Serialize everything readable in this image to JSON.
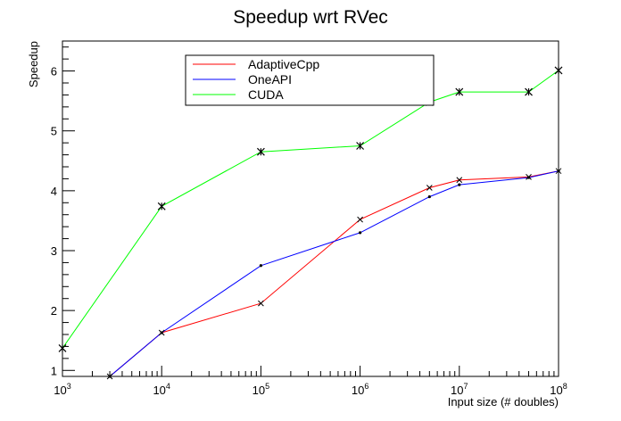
{
  "chart_data": {
    "type": "line",
    "title": "Speedup wrt RVec",
    "xlabel": "Input size (# doubles)",
    "ylabel": "Speedup",
    "x_scale": "log",
    "xlim": [
      1000,
      100000000
    ],
    "ylim": [
      0.9,
      6.5
    ],
    "x_ticks": [
      {
        "value": 1000,
        "base": "10",
        "exp": "3"
      },
      {
        "value": 10000,
        "base": "10",
        "exp": "4"
      },
      {
        "value": 100000,
        "base": "10",
        "exp": "5"
      },
      {
        "value": 1000000,
        "base": "10",
        "exp": "6"
      },
      {
        "value": 10000000,
        "base": "10",
        "exp": "7"
      },
      {
        "value": 100000000,
        "base": "10",
        "exp": "8"
      }
    ],
    "y_ticks": [
      1,
      2,
      3,
      4,
      5,
      6
    ],
    "legend_position": "top-center",
    "x": [
      1000,
      10000,
      100000,
      1000000,
      5000000,
      10000000,
      50000000,
      100000000
    ],
    "series": [
      {
        "name": "AdaptiveCpp",
        "color": "#ff0000",
        "marker": "x",
        "x": [
          3000,
          10000,
          100000,
          1000000,
          5000000,
          10000000,
          50000000,
          100000000
        ],
        "values": [
          0.9,
          1.63,
          2.12,
          3.52,
          4.05,
          4.18,
          4.23,
          4.33
        ]
      },
      {
        "name": "OneAPI",
        "color": "#0000ff",
        "marker": "dot",
        "x": [
          3000,
          10000,
          100000,
          1000000,
          5000000,
          10000000,
          50000000,
          100000000
        ],
        "values": [
          0.9,
          1.63,
          2.75,
          3.3,
          3.9,
          4.1,
          4.22,
          4.33
        ]
      },
      {
        "name": "CUDA",
        "color": "#00ff00",
        "marker": "star",
        "x": [
          1000,
          10000,
          100000,
          1000000,
          5000000,
          10000000,
          50000000,
          100000000
        ],
        "values": [
          1.37,
          3.74,
          4.65,
          4.75,
          5.48,
          5.65,
          5.65,
          6.01
        ]
      }
    ]
  }
}
